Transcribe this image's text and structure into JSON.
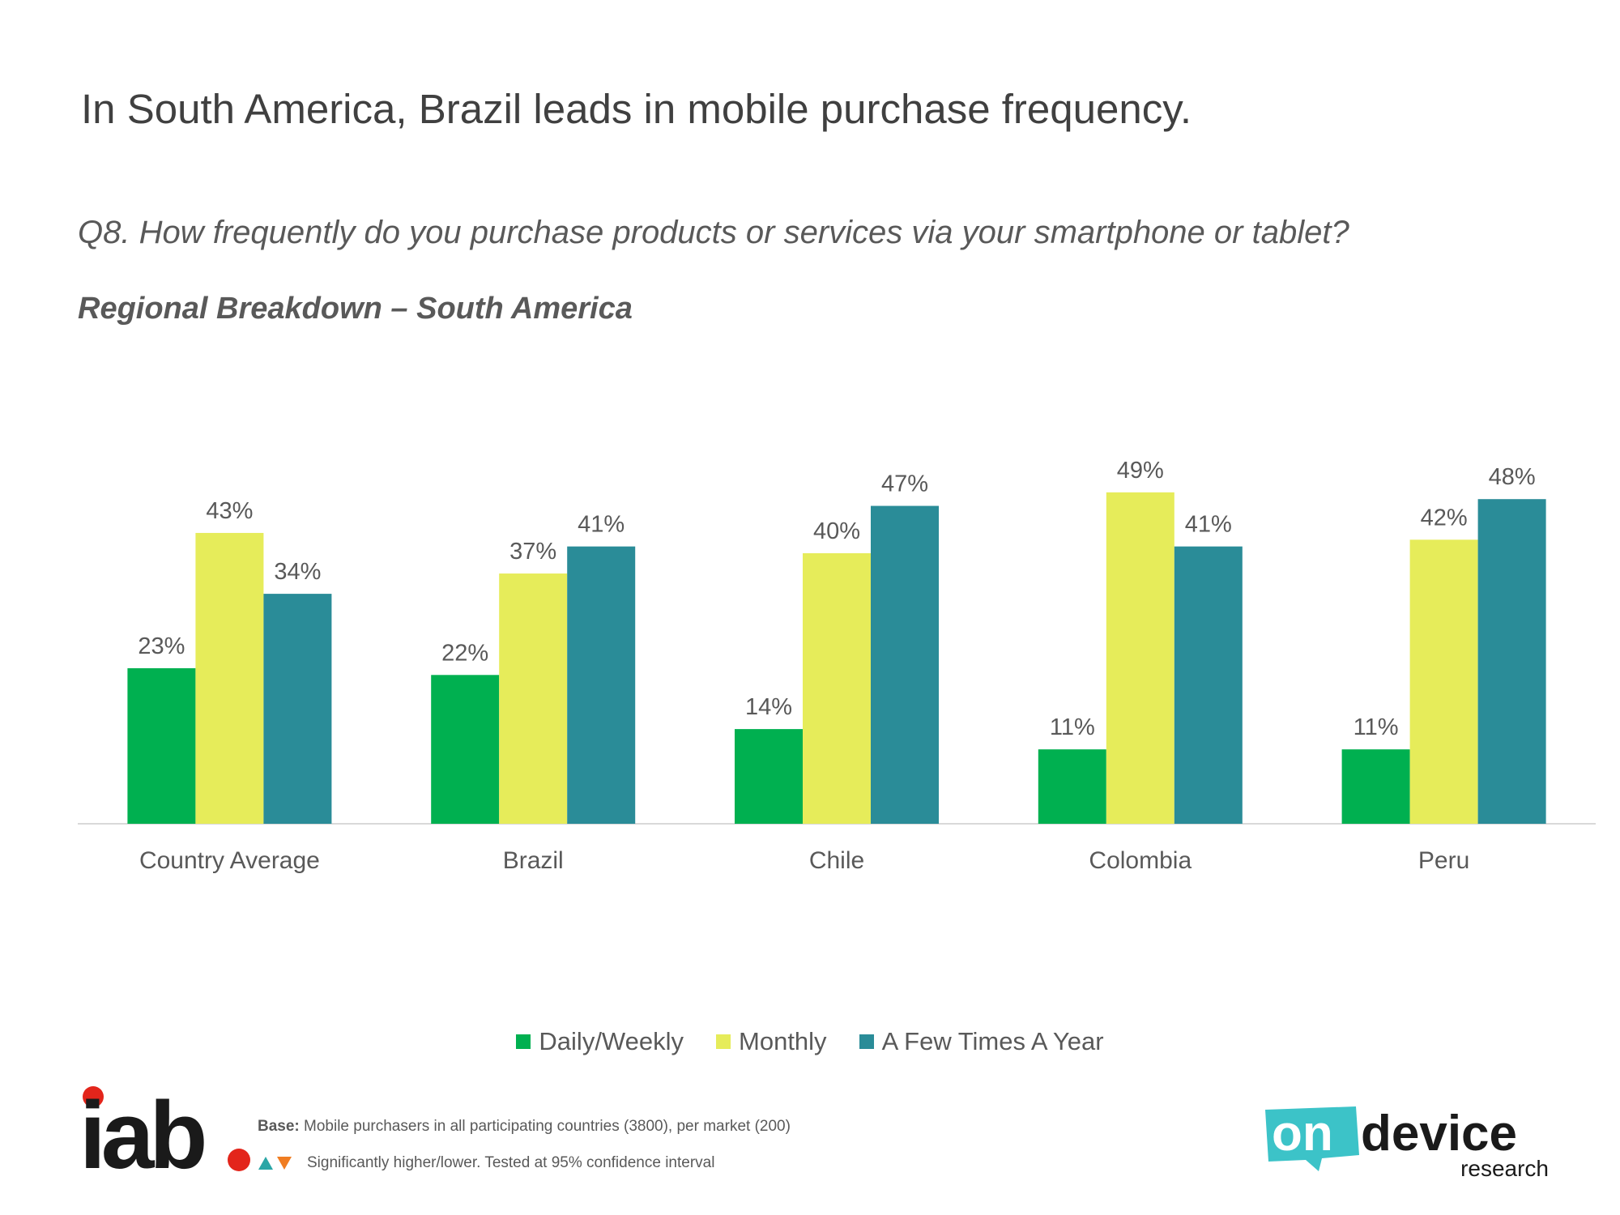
{
  "title": "In South America, Brazil leads in mobile purchase frequency.",
  "question": "Q8. How frequently do you purchase products or services via your smartphone or tablet?",
  "subtitle": "Regional Breakdown – South America",
  "colors": {
    "daily": "#00B050",
    "monthly": "#E6EC5A",
    "few_times": "#2A8C98",
    "text": "#595959",
    "axis": "#D9D9D9",
    "iab_red": "#E3251B",
    "triangle_up": "#2AA6A6",
    "triangle_down": "#F07D22"
  },
  "chart_data": {
    "type": "bar",
    "categories": [
      "Country Average",
      "Brazil",
      "Chile",
      "Colombia",
      "Peru"
    ],
    "series": [
      {
        "name": "Daily/Weekly",
        "values": [
          23,
          22,
          14,
          11,
          11
        ],
        "labels": [
          "23%",
          "22%",
          "14%",
          "11%",
          "11%"
        ]
      },
      {
        "name": "Monthly",
        "values": [
          43,
          37,
          40,
          49,
          42
        ],
        "labels": [
          "43%",
          "37%",
          "40%",
          "49%",
          "42%"
        ]
      },
      {
        "name": "A Few Times A Year",
        "values": [
          34,
          41,
          47,
          41,
          48
        ],
        "labels": [
          "34%",
          "41%",
          "47%",
          "41%",
          "48%"
        ]
      }
    ],
    "ylim": [
      0,
      50
    ],
    "grid": false,
    "legend": "bottom-center"
  },
  "footer": {
    "iab_logo_text": "iab",
    "base_label": "Base:",
    "base_text": " Mobile purchasers in all participating countries (3800), per market (200)",
    "sig_up_icon": "triangle-up-icon",
    "sig_down_icon": "triangle-down-icon",
    "sig_text": "Significantly higher/lower. Tested at 95% confidence interval",
    "ondevice_word1": "on",
    "ondevice_word2": "device",
    "ondevice_word3": "research"
  }
}
